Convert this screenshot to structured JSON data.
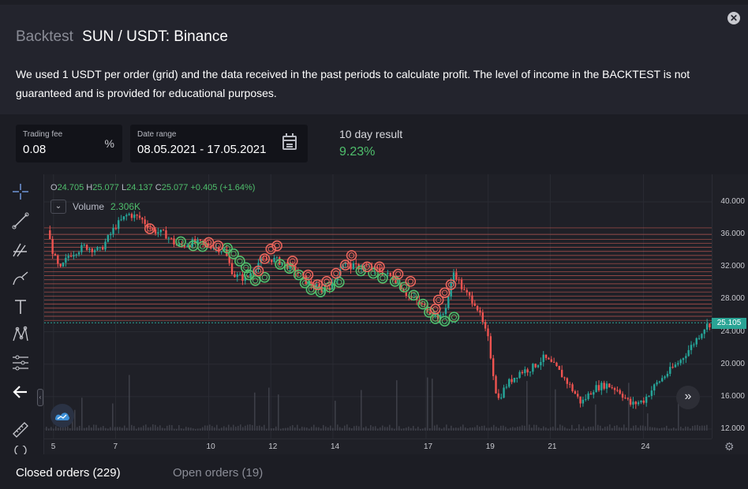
{
  "header": {
    "title_prefix": "Backtest",
    "title_pair": "SUN / USDT: Binance",
    "close_icon": "close-icon"
  },
  "disclaimer": "We used 1 USDT per order (grid) and the data received in the past periods to calculate profit. The level of income in the BACKTEST is not guaranteed and is provided for educational purposes.",
  "settings": {
    "trading_fee_label": "Trading fee",
    "trading_fee_value": "0.08",
    "trading_fee_suffix": "%",
    "date_range_label": "Date range",
    "date_range_value": "08.05.2021 - 17.05.2021",
    "result_label": "10 day result",
    "result_value": "9.23%"
  },
  "chart": {
    "ohlc": {
      "o_label": "O",
      "o": "24.705",
      "h_label": "H",
      "h": "25.077",
      "l_label": "L",
      "l": "24.137",
      "c_label": "C",
      "c": "25.077",
      "change": "+0.405 (+1.64%)"
    },
    "volume_label": "Volume",
    "volume_value": "2.306K",
    "last_price": "25.105",
    "y_ticks": [
      "40.000",
      "36.000",
      "32.000",
      "28.000",
      "24.000",
      "20.000",
      "16.000",
      "12.000"
    ],
    "x_ticks": [
      "5",
      "7",
      "10",
      "12",
      "14",
      "17",
      "19",
      "21",
      "24"
    ],
    "colors": {
      "up": "#26a69a",
      "down": "#ef5350",
      "buy": "#4fbf6c",
      "sell": "#e8655c"
    }
  },
  "chart_data": {
    "type": "candlestick",
    "y_range": [
      12,
      40
    ],
    "x_range": [
      4.7,
      26.2
    ],
    "grid_levels": [
      25.4,
      25.9,
      26.4,
      26.9,
      27.4,
      27.9,
      28.4,
      28.9,
      29.4,
      29.9,
      30.4,
      30.9,
      31.4,
      31.9,
      32.4,
      32.9,
      33.4,
      33.9,
      34.4,
      34.9,
      35.4,
      36.0,
      36.8
    ],
    "close_path": [
      [
        4.8,
        36.5
      ],
      [
        5.0,
        33.5
      ],
      [
        5.2,
        31.5
      ],
      [
        5.5,
        33.5
      ],
      [
        6.0,
        34.5
      ],
      [
        6.5,
        34.0
      ],
      [
        7.0,
        37.0
      ],
      [
        7.4,
        38.5
      ],
      [
        7.8,
        38.0
      ],
      [
        8.2,
        36.5
      ],
      [
        8.6,
        36.0
      ],
      [
        9.0,
        34.5
      ],
      [
        9.5,
        35.0
      ],
      [
        10.0,
        34.7
      ],
      [
        10.5,
        34.0
      ],
      [
        10.8,
        31.0
      ],
      [
        11.2,
        30.5
      ],
      [
        11.6,
        32.5
      ],
      [
        12.0,
        33.0
      ],
      [
        12.4,
        32.5
      ],
      [
        12.8,
        31.5
      ],
      [
        13.2,
        30.0
      ],
      [
        13.6,
        29.2
      ],
      [
        14.0,
        29.8
      ],
      [
        14.3,
        32.5
      ],
      [
        14.6,
        32.0
      ],
      [
        15.0,
        32.0
      ],
      [
        15.5,
        31.5
      ],
      [
        16.0,
        30.5
      ],
      [
        16.4,
        28.5
      ],
      [
        16.8,
        27.5
      ],
      [
        17.2,
        26.3
      ],
      [
        17.5,
        25.6
      ],
      [
        17.7,
        28.0
      ],
      [
        17.9,
        31.5
      ],
      [
        18.2,
        29.0
      ],
      [
        18.6,
        27.5
      ],
      [
        19.0,
        23.0
      ],
      [
        19.3,
        15.5
      ],
      [
        19.6,
        17.5
      ],
      [
        20.0,
        19.0
      ],
      [
        20.4,
        19.5
      ],
      [
        20.8,
        20.8
      ],
      [
        21.2,
        19.5
      ],
      [
        21.6,
        17.5
      ],
      [
        22.0,
        15.2
      ],
      [
        22.4,
        17.0
      ],
      [
        22.8,
        17.5
      ],
      [
        23.2,
        16.8
      ],
      [
        23.6,
        15.0
      ],
      [
        24.0,
        15.5
      ],
      [
        24.4,
        17.5
      ],
      [
        24.8,
        19.0
      ],
      [
        25.2,
        20.5
      ],
      [
        25.6,
        22.5
      ],
      [
        26.0,
        24.7
      ],
      [
        26.2,
        25.1
      ]
    ],
    "buy_markers": [
      [
        9.1,
        35.1
      ],
      [
        9.5,
        34.6
      ],
      [
        9.8,
        34.5
      ],
      [
        10.6,
        34.3
      ],
      [
        10.8,
        33.6
      ],
      [
        11.0,
        32.7
      ],
      [
        11.2,
        31.9
      ],
      [
        11.3,
        31.0
      ],
      [
        11.5,
        30.3
      ],
      [
        11.8,
        30.7
      ],
      [
        12.3,
        32.3
      ],
      [
        12.6,
        31.8
      ],
      [
        12.9,
        31.0
      ],
      [
        13.1,
        30.0
      ],
      [
        13.3,
        29.2
      ],
      [
        13.6,
        28.9
      ],
      [
        13.9,
        29.5
      ],
      [
        14.2,
        30.1
      ],
      [
        14.9,
        31.5
      ],
      [
        15.3,
        31.2
      ],
      [
        15.6,
        30.6
      ],
      [
        16.0,
        30.2
      ],
      [
        16.3,
        29.5
      ],
      [
        16.6,
        28.5
      ],
      [
        16.9,
        27.4
      ],
      [
        17.1,
        26.4
      ],
      [
        17.3,
        25.6
      ],
      [
        17.6,
        25.3
      ],
      [
        17.9,
        25.8
      ]
    ],
    "sell_markers": [
      [
        8.1,
        36.7
      ],
      [
        10.0,
        35.0
      ],
      [
        10.3,
        34.6
      ],
      [
        11.6,
        31.5
      ],
      [
        11.8,
        33.0
      ],
      [
        12.0,
        34.2
      ],
      [
        12.2,
        34.6
      ],
      [
        12.7,
        32.7
      ],
      [
        13.2,
        31.0
      ],
      [
        13.5,
        29.8
      ],
      [
        13.8,
        30.2
      ],
      [
        14.1,
        31.2
      ],
      [
        14.4,
        32.2
      ],
      [
        14.6,
        33.4
      ],
      [
        15.1,
        32.0
      ],
      [
        15.5,
        32.0
      ],
      [
        16.1,
        31.1
      ],
      [
        16.5,
        30.2
      ],
      [
        17.3,
        26.8
      ],
      [
        17.4,
        27.9
      ],
      [
        17.6,
        28.8
      ],
      [
        17.8,
        29.8
      ]
    ]
  },
  "tabs": {
    "closed": "Closed orders (229)",
    "open": "Open orders (19)"
  }
}
